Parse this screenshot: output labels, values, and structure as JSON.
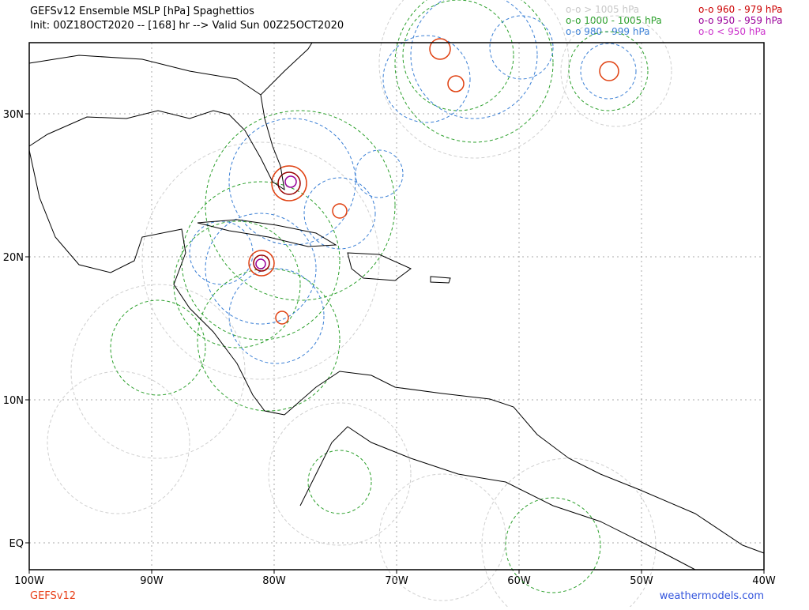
{
  "header": {
    "title": "GEFSv12 Ensemble MSLP [hPa] Spaghettios",
    "subtitle": "Init: 00Z18OCT2020 -- [168] hr --> Valid Sun 00Z25OCT2020"
  },
  "legend": [
    {
      "label": "o-o > 1005 hPa",
      "color": "#c8c8c8"
    },
    {
      "label": "o-o 1000 - 1005 hPa",
      "color": "#2ca02c"
    },
    {
      "label": "o-o 980 - 999 hPa",
      "color": "#3a7fd5"
    },
    {
      "label": "o-o 960 - 979 hPa",
      "color": "#cc0000"
    },
    {
      "label": "o-o 950 - 959 hPa",
      "color": "#990099"
    },
    {
      "label": "o-o < 950 hPa",
      "color": "#cc33cc"
    }
  ],
  "map": {
    "x_labels": [
      "100W",
      "90W",
      "80W",
      "70W",
      "60W",
      "50W",
      "40W"
    ],
    "y_labels": [
      "30N",
      "20N",
      "10N",
      "EQ"
    ]
  },
  "footer": {
    "model": "GEFSv12",
    "site": "weathermodels.com"
  }
}
